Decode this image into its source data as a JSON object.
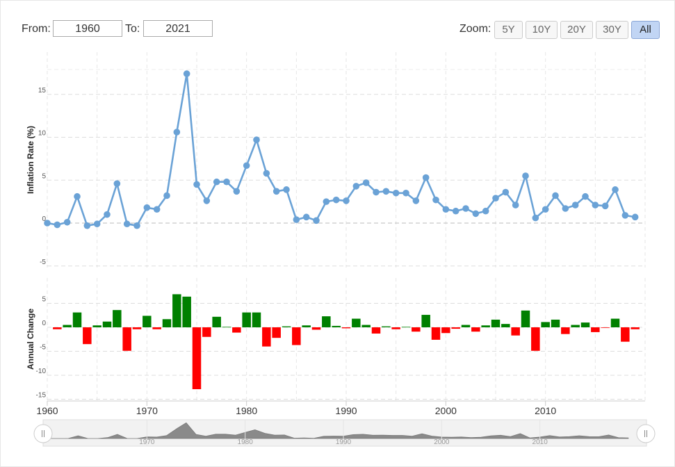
{
  "controls": {
    "from_label": "From:",
    "from_value": "1960",
    "to_label": "To:",
    "to_value": "2021",
    "zoom_label": "Zoom:",
    "zoom_buttons": [
      {
        "label": "5Y",
        "active": false
      },
      {
        "label": "10Y",
        "active": false
      },
      {
        "label": "20Y",
        "active": false
      },
      {
        "label": "30Y",
        "active": false
      },
      {
        "label": "All",
        "active": true
      }
    ]
  },
  "chart_data": [
    {
      "type": "line",
      "ylabel": "Inflation Rate (%)",
      "ylim": [
        -5,
        17.5
      ],
      "yticks": [
        15,
        10,
        5,
        0,
        -5
      ],
      "grid": true,
      "color": "#6aa2d6",
      "x": [
        1960,
        1961,
        1962,
        1963,
        1964,
        1965,
        1966,
        1967,
        1968,
        1969,
        1970,
        1971,
        1972,
        1973,
        1974,
        1975,
        1976,
        1977,
        1978,
        1979,
        1980,
        1981,
        1982,
        1983,
        1984,
        1985,
        1986,
        1987,
        1988,
        1989,
        1990,
        1991,
        1992,
        1993,
        1994,
        1995,
        1996,
        1997,
        1998,
        1999,
        2000,
        2001,
        2002,
        2003,
        2004,
        2005,
        2006,
        2007,
        2008,
        2009,
        2010,
        2011,
        2012,
        2013,
        2014,
        2015,
        2016,
        2017,
        2018,
        2019
      ],
      "values": [
        0.0,
        -0.2,
        0.1,
        3.1,
        -0.3,
        -0.1,
        1.0,
        4.6,
        -0.1,
        -0.3,
        1.8,
        1.6,
        3.2,
        10.6,
        17.4,
        4.5,
        2.6,
        4.8,
        4.8,
        3.7,
        6.7,
        9.7,
        5.8,
        3.7,
        3.9,
        0.4,
        0.7,
        0.3,
        2.5,
        2.7,
        2.6,
        4.3,
        4.7,
        3.6,
        3.7,
        3.5,
        3.5,
        2.6,
        5.3,
        2.7,
        1.6,
        1.4,
        1.7,
        1.1,
        1.4,
        2.9,
        3.6,
        2.1,
        5.5,
        0.6,
        1.6,
        3.2,
        1.7,
        2.1,
        3.1,
        2.1,
        2.0,
        3.9,
        0.9,
        0.7
      ]
    },
    {
      "type": "bar",
      "ylabel": "Annual Change",
      "ylim": [
        -15,
        10
      ],
      "yticks": [
        5,
        0,
        -5,
        -10,
        -15
      ],
      "grid": true,
      "positive_color": "#008000",
      "negative_color": "#ff0000",
      "x": [
        1961,
        1962,
        1963,
        1964,
        1965,
        1966,
        1967,
        1968,
        1969,
        1970,
        1971,
        1972,
        1973,
        1974,
        1975,
        1976,
        1977,
        1978,
        1979,
        1980,
        1981,
        1982,
        1983,
        1984,
        1985,
        1986,
        1987,
        1988,
        1989,
        1990,
        1991,
        1992,
        1993,
        1994,
        1995,
        1996,
        1997,
        1998,
        1999,
        2000,
        2001,
        2002,
        2003,
        2004,
        2005,
        2006,
        2007,
        2008,
        2009,
        2010,
        2011,
        2012,
        2013,
        2014,
        2015,
        2016,
        2017,
        2018,
        2019
      ],
      "values": [
        -0.4,
        0.5,
        3.1,
        -3.5,
        0.4,
        1.2,
        3.6,
        -4.9,
        -0.4,
        2.4,
        -0.4,
        1.7,
        6.9,
        6.4,
        -12.9,
        -2.0,
        2.2,
        0.1,
        -1.1,
        3.1,
        3.1,
        -4.0,
        -2.2,
        0.2,
        -3.7,
        0.4,
        -0.5,
        2.3,
        0.3,
        -0.2,
        1.8,
        0.5,
        -1.3,
        0.2,
        -0.4,
        0.1,
        -0.9,
        2.6,
        -2.6,
        -1.2,
        -0.3,
        0.5,
        -0.9,
        0.4,
        1.6,
        0.7,
        -1.7,
        3.5,
        -4.9,
        1.1,
        1.6,
        -1.4,
        0.5,
        1.0,
        -1.0,
        -0.1,
        1.8,
        -3.0,
        -0.4
      ]
    }
  ],
  "x_axis": {
    "ticks": [
      "1960",
      "1970",
      "1980",
      "1990",
      "2000",
      "2010"
    ],
    "range": [
      1960,
      2020
    ]
  },
  "navigator": {
    "ticks": [
      "1970",
      "1980",
      "1990",
      "2000",
      "2010"
    ]
  }
}
